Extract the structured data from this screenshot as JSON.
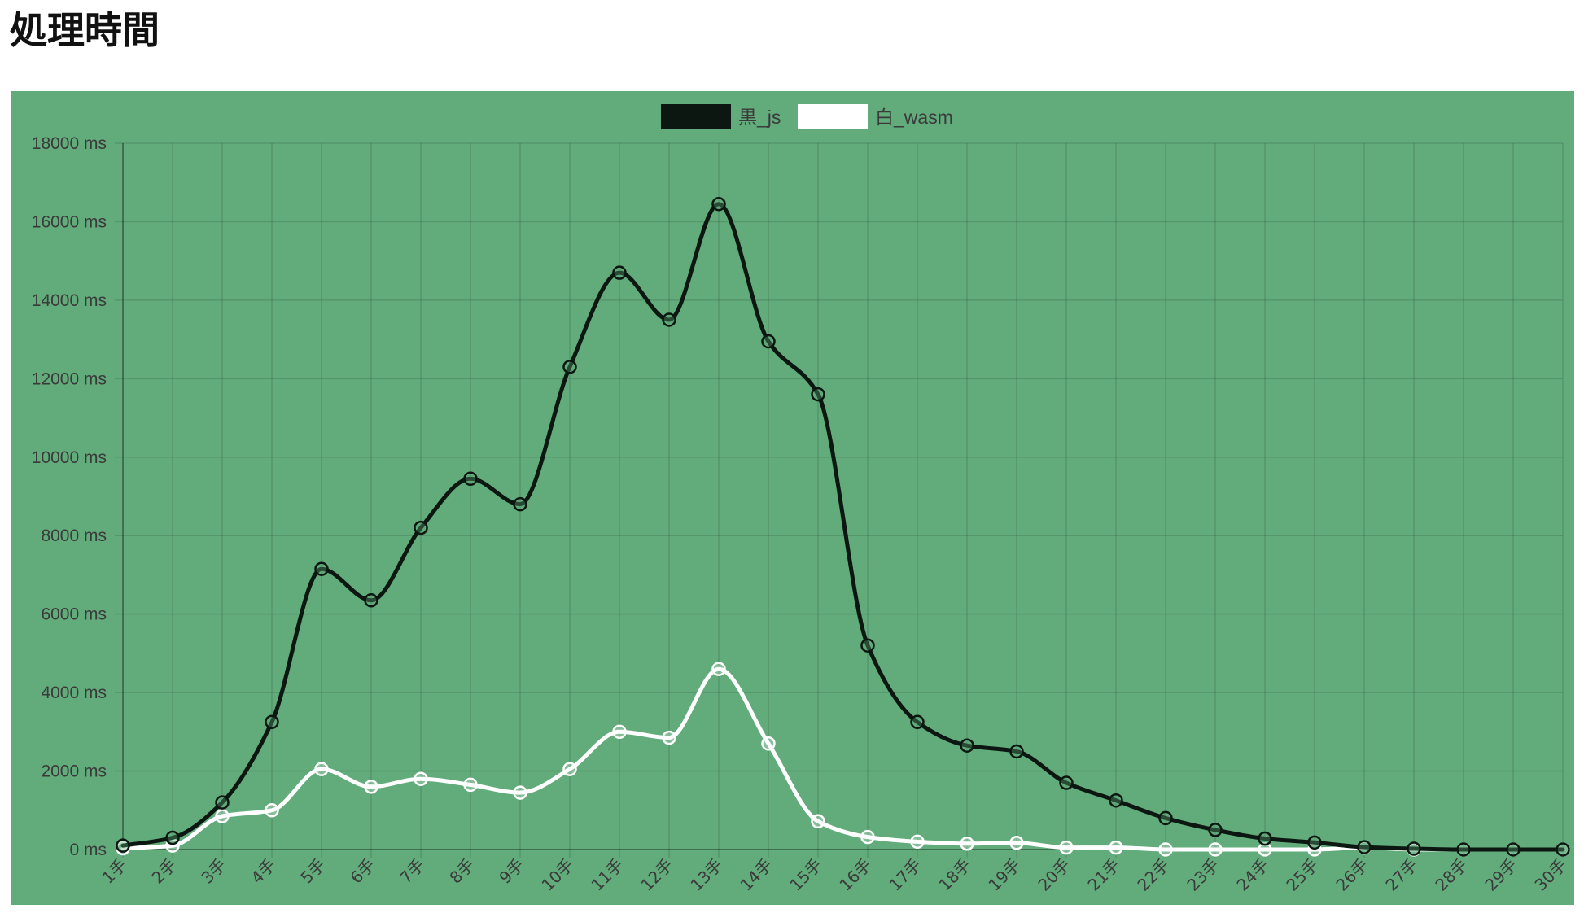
{
  "page": {
    "title": "処理時間"
  },
  "chart_data": {
    "type": "line",
    "title": "",
    "xlabel": "",
    "ylabel": "",
    "ylim": [
      0,
      18000
    ],
    "yticks": [
      0,
      2000,
      4000,
      6000,
      8000,
      10000,
      12000,
      14000,
      16000,
      18000
    ],
    "ytick_suffix": " ms",
    "grid": true,
    "legend_position": "top-center",
    "categories": [
      "1手",
      "2手",
      "3手",
      "4手",
      "5手",
      "6手",
      "7手",
      "8手",
      "9手",
      "10手",
      "11手",
      "12手",
      "13手",
      "14手",
      "15手",
      "16手",
      "17手",
      "18手",
      "19手",
      "20手",
      "21手",
      "22手",
      "23手",
      "24手",
      "25手",
      "26手",
      "27手",
      "28手",
      "29手",
      "30手"
    ],
    "series": [
      {
        "name": "黒_js",
        "color": "#0b1710",
        "values": [
          100,
          300,
          1200,
          3250,
          7150,
          6350,
          8200,
          9450,
          8800,
          12300,
          14700,
          13500,
          16450,
          12950,
          11600,
          5200,
          3250,
          2650,
          2500,
          1700,
          1250,
          800,
          500,
          280,
          180,
          60,
          20,
          0,
          0,
          0
        ]
      },
      {
        "name": "白_wasm",
        "color": "#ffffff",
        "values": [
          30,
          100,
          850,
          1000,
          2050,
          1600,
          1800,
          1650,
          1450,
          2050,
          3000,
          2850,
          4600,
          2700,
          720,
          320,
          200,
          150,
          170,
          50,
          50,
          0,
          0,
          0,
          0,
          50,
          0,
          0,
          0,
          0
        ]
      }
    ]
  }
}
